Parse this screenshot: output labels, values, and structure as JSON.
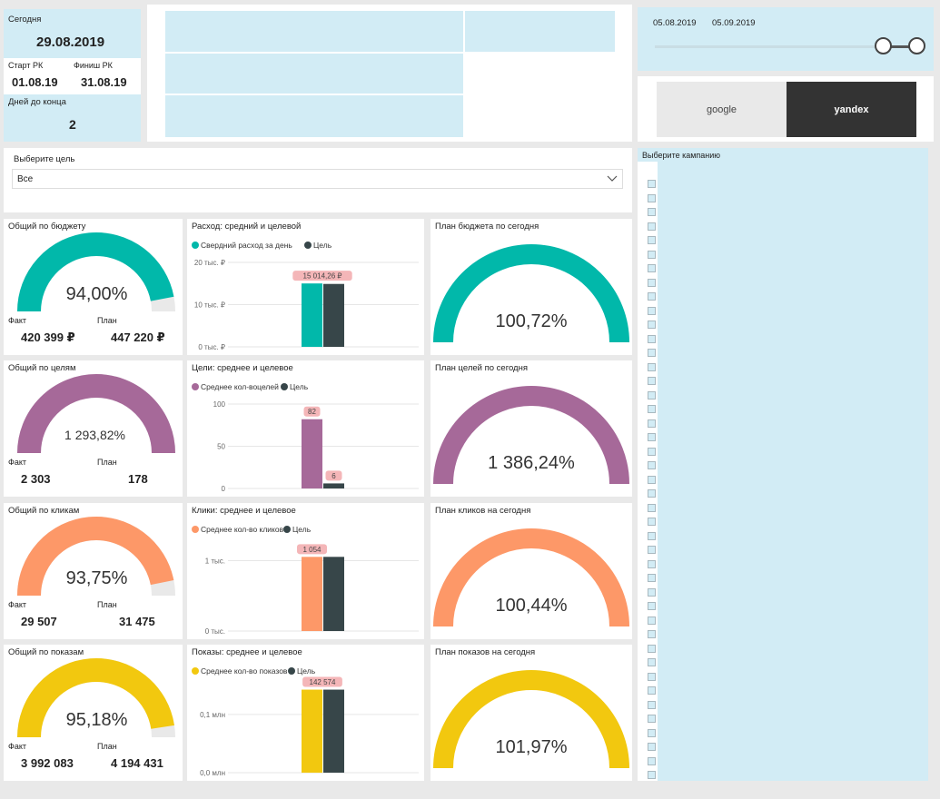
{
  "kpi": {
    "today_label": "Сегодня",
    "today_value": "29.08.2019",
    "start_label": "Старт РК",
    "start_value": "01.08.19",
    "finish_label": "Финиш РК",
    "finish_value": "31.08.19",
    "days_label": "Дней до конца",
    "days_value": "2"
  },
  "date_slider": {
    "start": "05.08.2019",
    "end": "05.09.2019"
  },
  "source_toggle": {
    "options": [
      "google",
      "yandex"
    ],
    "selected": "yandex"
  },
  "goal_filter": {
    "label": "Выберите цель",
    "value": "Все"
  },
  "campaign_filter": {
    "label": "Выберите кампанию"
  },
  "colors": {
    "budget": "#01b8aa",
    "goals": "#a66999",
    "clicks": "#fd9868",
    "impressions": "#f2c80f",
    "target": "#374649",
    "gauge_bg": "#e9e9e9",
    "panel": "#d2ecf5"
  },
  "gauges_left": [
    {
      "title": "Общий по бюджету",
      "value": "94,00%",
      "fraction": 0.94,
      "fact_label": "Факт",
      "plan_label": "План",
      "fact": "420 399 ₽",
      "plan": "447 220 ₽",
      "color_key": "budget"
    },
    {
      "title": "Общий по целям",
      "value": "1 293,82%",
      "fraction": 1,
      "fact_label": "Факт",
      "plan_label": "План",
      "fact": "2 303",
      "plan": "178",
      "color_key": "goals"
    },
    {
      "title": "Общий по кликам",
      "value": "93,75%",
      "fraction": 0.9375,
      "fact_label": "Факт",
      "plan_label": "План",
      "fact": "29 507",
      "plan": "31 475",
      "color_key": "clicks"
    },
    {
      "title": "Общий по показам",
      "value": "95,18%",
      "fraction": 0.9518,
      "fact_label": "Факт",
      "plan_label": "План",
      "fact": "3 992 083",
      "plan": "4 194 431",
      "color_key": "impressions"
    }
  ],
  "gauges_right": [
    {
      "title": "План бюджета по сегодня",
      "value": "100,72%",
      "fraction": 1,
      "color_key": "budget"
    },
    {
      "title": "План целей по сегодня",
      "value": "1 386,24%",
      "fraction": 1,
      "color_key": "goals"
    },
    {
      "title": "План кликов на сегодня",
      "value": "100,44%",
      "fraction": 1,
      "color_key": "clicks"
    },
    {
      "title": "План показов на сегодня",
      "value": "101,97%",
      "fraction": 1,
      "color_key": "impressions"
    }
  ],
  "chart_data": [
    {
      "type": "bar",
      "title": "Расход: средний и целевой",
      "series": [
        {
          "name": "Свердний расход за день",
          "values": [
            15014.26
          ]
        },
        {
          "name": "Цель",
          "values": [
            14900
          ]
        }
      ],
      "categories": [
        ""
      ],
      "ylim": [
        0,
        20000
      ],
      "yticks": [
        "0 тыс. ₽",
        "10 тыс. ₽",
        "20 тыс. ₽"
      ],
      "ytick_values": [
        0,
        10000,
        20000
      ],
      "data_labels": [
        "15 014,26 ₽",
        ""
      ],
      "color_keys": [
        "budget",
        "target"
      ]
    },
    {
      "type": "bar",
      "title": "Цели: среднее и целевое",
      "series": [
        {
          "name": "Среднее кол-воцелей",
          "values": [
            82
          ]
        },
        {
          "name": "Цель",
          "values": [
            6
          ]
        }
      ],
      "categories": [
        ""
      ],
      "ylim": [
        0,
        100
      ],
      "yticks": [
        "0",
        "50",
        "100"
      ],
      "ytick_values": [
        0,
        50,
        100
      ],
      "data_labels": [
        "82",
        "6"
      ],
      "color_keys": [
        "goals",
        "target"
      ]
    },
    {
      "type": "bar",
      "title": "Клики: среднее и целевое",
      "series": [
        {
          "name": "Среднее кол-во кликов",
          "values": [
            1054
          ]
        },
        {
          "name": "Цель",
          "values": [
            1054
          ]
        }
      ],
      "categories": [
        ""
      ],
      "ylim": [
        0,
        1200
      ],
      "yticks": [
        "0 тыс.",
        "1 тыс."
      ],
      "ytick_values": [
        0,
        1000
      ],
      "data_labels": [
        "1 054",
        ""
      ],
      "color_keys": [
        "clicks",
        "target"
      ]
    },
    {
      "type": "bar",
      "title": "Показы: среднее и целевое",
      "series": [
        {
          "name": "Среднее кол-во показов",
          "values": [
            142574
          ]
        },
        {
          "name": "Цель",
          "values": [
            142574
          ]
        }
      ],
      "categories": [
        ""
      ],
      "ylim": [
        0,
        145000
      ],
      "yticks": [
        "0,0 млн",
        "0,1 млн"
      ],
      "ytick_values": [
        0,
        100000
      ],
      "data_labels": [
        "142 574",
        ""
      ],
      "color_keys": [
        "impressions",
        "target"
      ]
    }
  ]
}
